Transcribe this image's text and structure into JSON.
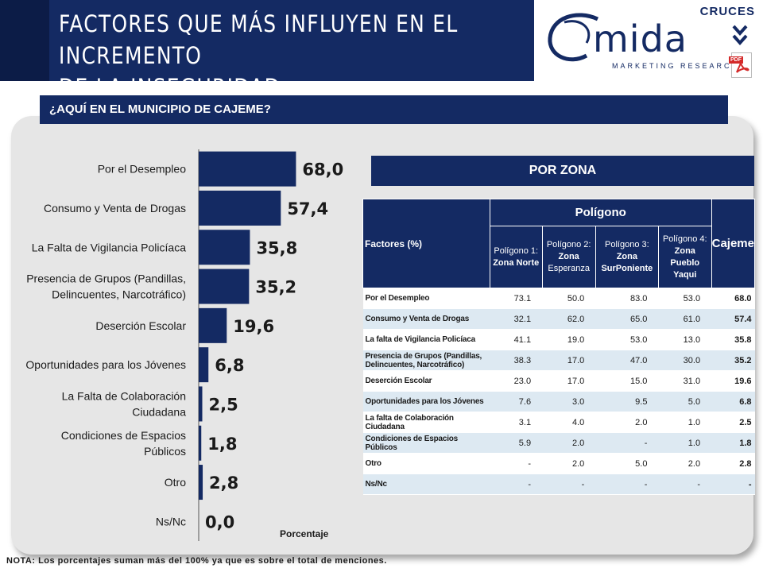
{
  "header": {
    "title_line1": "FACTORES QUE MÁS INFLUYEN EN EL INCREMENTO",
    "title_line2": "DE LA INSEGURIDAD",
    "logo_brand": "mida",
    "logo_sub": "MARKETING RESEARCH",
    "corner_label": "CRUCES",
    "pdf_label": "PDF"
  },
  "question": "¿AQUÍ EN EL MUNICIPIO DE CAJEME?",
  "zone_title": "POR ZONA",
  "note": "NOTA: Los porcentajes suman más del 100% ya que es sobre el total de menciones.",
  "colors": {
    "navy": "#142a63",
    "bar": "#142a63",
    "panel": "#e6e6e6",
    "row_alt": "#dde9f2"
  },
  "chart_data": {
    "type": "bar",
    "orientation": "horizontal",
    "xlabel": "Porcentaje",
    "xlim": [
      0,
      100
    ],
    "categories": [
      "Por el Desempleo",
      "Consumo y Venta de Drogas",
      "La Falta de Vigilancia Policíaca",
      "Presencia de Grupos (Pandillas, Delincuentes, Narcotráfico)",
      "Deserción Escolar",
      "Oportunidades para los Jóvenes",
      "La Falta de Colaboración Ciudadana",
      "Condiciones de Espacios Públicos",
      "Otro",
      "Ns/Nc"
    ],
    "category_lines": [
      [
        "Por el Desempleo"
      ],
      [
        "Consumo y Venta de Drogas"
      ],
      [
        "La Falta de Vigilancia Policíaca"
      ],
      [
        "Presencia de Grupos (Pandillas,",
        "Delincuentes, Narcotráfico)"
      ],
      [
        "Deserción Escolar"
      ],
      [
        "Oportunidades para los Jóvenes"
      ],
      [
        "La Falta de Colaboración",
        "Ciudadana"
      ],
      [
        "Condiciones de Espacios",
        "Públicos"
      ],
      [
        "Otro"
      ],
      [
        "Ns/Nc"
      ]
    ],
    "values": [
      68.0,
      57.4,
      35.8,
      35.2,
      19.6,
      6.8,
      2.5,
      1.8,
      2.8,
      0.0
    ],
    "value_labels": [
      "68,0",
      "57,4",
      "35,8",
      "35,2",
      "19,6",
      "6,8",
      "2,5",
      "1,8",
      "2,8",
      "0,0"
    ]
  },
  "table": {
    "header_factor": "Factores (%)",
    "header_group": "Polígono",
    "header_total": "Cajeme",
    "zones": [
      {
        "pre": "Polígono 1: ",
        "bold": "Zona Norte",
        "tail": ""
      },
      {
        "pre": "Polígono 2: ",
        "bold": "Zona",
        "tail": " Esperanza"
      },
      {
        "pre": "Polígono 3: ",
        "bold": "Zona SurPoniente",
        "tail": ""
      },
      {
        "pre": "Polígono 4: ",
        "bold": "Zona Pueblo Yaqui",
        "tail": ""
      }
    ],
    "rows": [
      {
        "factor": "Por el Desempleo",
        "values": [
          "73.1",
          "50.0",
          "83.0",
          "53.0"
        ],
        "total": "68.0"
      },
      {
        "factor": "Consumo y Venta de Drogas",
        "values": [
          "32.1",
          "62.0",
          "65.0",
          "61.0"
        ],
        "total": "57.4"
      },
      {
        "factor": "La falta de Vigilancia Policíaca",
        "values": [
          "41.1",
          "19.0",
          "53.0",
          "13.0"
        ],
        "total": "35.8"
      },
      {
        "factor": "Presencia de Grupos (Pandillas, Delincuentes, Narcotráfico)",
        "values": [
          "38.3",
          "17.0",
          "47.0",
          "30.0"
        ],
        "total": "35.2"
      },
      {
        "factor": "Deserción Escolar",
        "values": [
          "23.0",
          "17.0",
          "15.0",
          "31.0"
        ],
        "total": "19.6"
      },
      {
        "factor": "Oportunidades para los Jóvenes",
        "values": [
          "7.6",
          "3.0",
          "9.5",
          "5.0"
        ],
        "total": "6.8"
      },
      {
        "factor": "La falta de Colaboración Ciudadana",
        "values": [
          "3.1",
          "4.0",
          "2.0",
          "1.0"
        ],
        "total": "2.5"
      },
      {
        "factor": "Condiciones de Espacios Públicos",
        "values": [
          "5.9",
          "2.0",
          "-",
          "1.0"
        ],
        "total": "1.8"
      },
      {
        "factor": "Otro",
        "values": [
          "-",
          "2.0",
          "5.0",
          "2.0"
        ],
        "total": "2.8"
      },
      {
        "factor": "Ns/Nc",
        "values": [
          "-",
          "-",
          "-",
          "-"
        ],
        "total": "-"
      }
    ]
  }
}
